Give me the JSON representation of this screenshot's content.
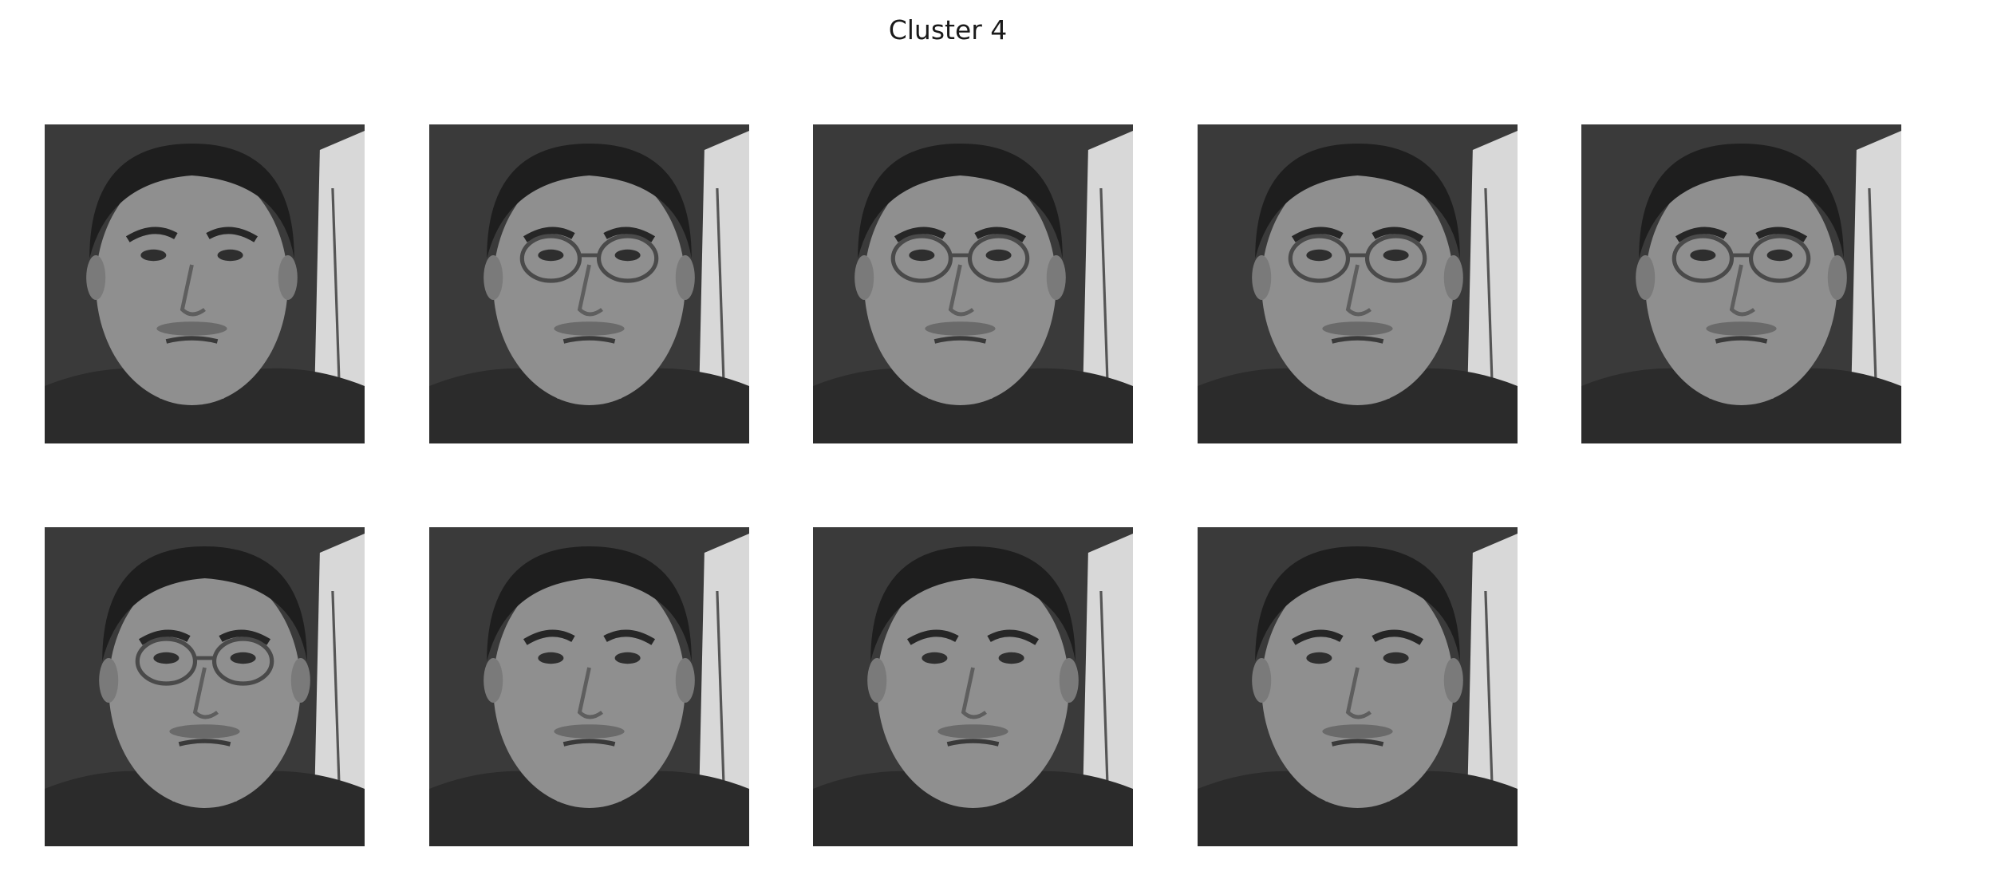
{
  "figure": {
    "title": "Cluster 4"
  },
  "faces": [
    {
      "glasses": false,
      "pose": "three-quarter"
    },
    {
      "glasses": true,
      "pose": "frontal"
    },
    {
      "glasses": true,
      "pose": "three-quarter"
    },
    {
      "glasses": true,
      "pose": "frontal"
    },
    {
      "glasses": true,
      "pose": "frontal"
    },
    {
      "glasses": true,
      "pose": "frontal"
    },
    {
      "glasses": false,
      "pose": "frontal"
    },
    {
      "glasses": false,
      "pose": "frontal"
    },
    {
      "glasses": false,
      "pose": "frontal"
    }
  ]
}
